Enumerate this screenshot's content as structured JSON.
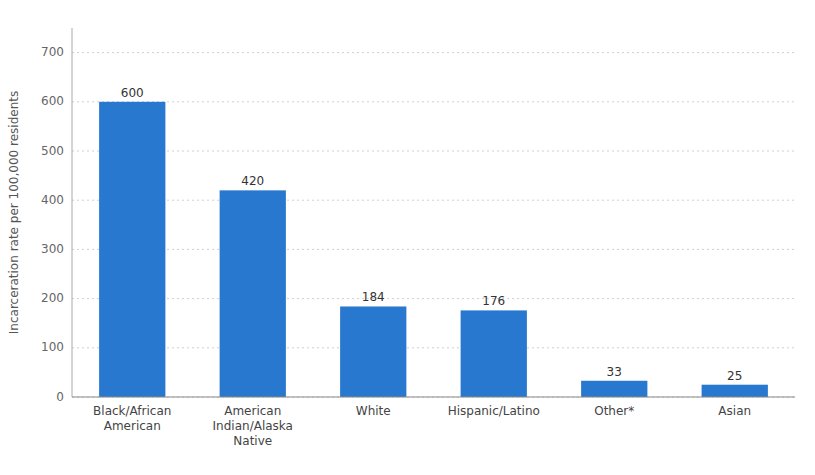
{
  "chart_data": {
    "type": "bar",
    "categories": [
      "Black/African\nAmerican",
      "American\nIndian/Alaska\nNative",
      "White",
      "Hispanic/Latino",
      "Other*",
      "Asian"
    ],
    "values": [
      600,
      420,
      184,
      176,
      33,
      25
    ],
    "color": "#2878d0",
    "ylabel": "Incarceration rate per 100,000 residents",
    "ylim": [
      0,
      750
    ],
    "yticks": [
      0,
      100,
      200,
      300,
      400,
      500,
      600,
      700
    ],
    "grid": true,
    "data_labels": true
  }
}
